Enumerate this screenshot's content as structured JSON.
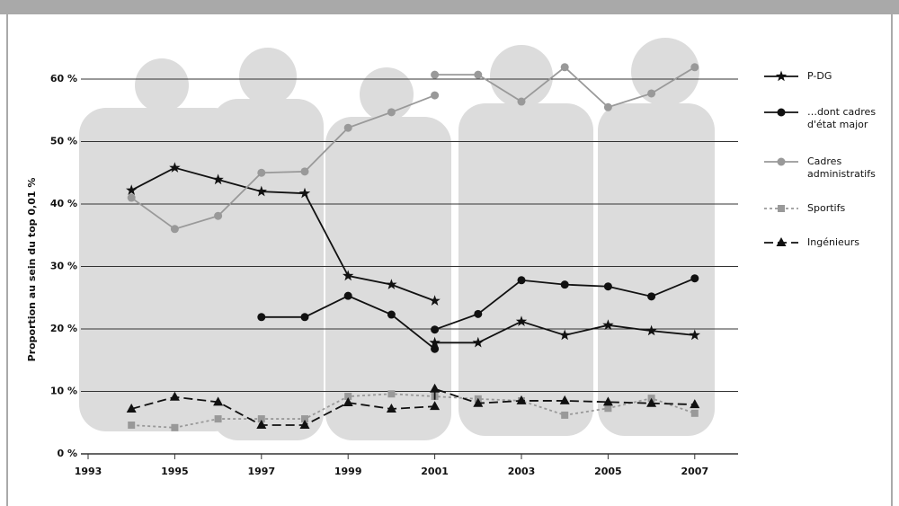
{
  "chart_data": {
    "type": "line",
    "y_label": "Proportion au sein du top 0,01 %",
    "xlim": [
      1993,
      2008
    ],
    "xticks": [
      1993,
      1995,
      1997,
      1999,
      2001,
      2003,
      2005,
      2007
    ],
    "ylim": [
      0,
      60
    ],
    "yticks": [
      {
        "value": 0,
        "label": "0 %"
      },
      {
        "value": 10,
        "label": "10 %"
      },
      {
        "value": 20,
        "label": "20 %"
      },
      {
        "value": 30,
        "label": "30 %"
      },
      {
        "value": 40,
        "label": "40 %"
      },
      {
        "value": 50,
        "label": "50 %"
      },
      {
        "value": 60,
        "label": "60 %"
      }
    ],
    "grid": true,
    "legend": "right",
    "series": [
      {
        "name": "P-DG",
        "color": "#111111",
        "marker": "star",
        "dash": "solid",
        "x": [
          1994,
          1995,
          1996,
          1997,
          1998,
          1999,
          2000,
          2001,
          2001,
          2001,
          2002,
          2003,
          2004,
          2005,
          2006,
          2007
        ],
        "values": [
          42.2,
          45.8,
          43.9,
          42.0,
          41.7,
          28.5,
          27.1,
          24.5,
          null,
          17.8,
          17.8,
          21.2,
          19.0,
          20.6,
          19.7,
          19.0
        ]
      },
      {
        "name": "…dont cadres d'état major",
        "color": "#111111",
        "marker": "circle",
        "dash": "solid",
        "x": [
          1997,
          1998,
          1999,
          2000,
          2001,
          2001,
          2001,
          2002,
          2003,
          2004,
          2005,
          2006,
          2007
        ],
        "values": [
          21.9,
          21.9,
          25.3,
          22.3,
          16.8,
          null,
          19.9,
          22.4,
          27.8,
          27.1,
          26.8,
          25.2,
          28.1
        ]
      },
      {
        "name": "Cadres administratifs",
        "color": "#999999",
        "marker": "circle",
        "dash": "solid",
        "x": [
          1994,
          1995,
          1996,
          1997,
          1998,
          1999,
          2000,
          2001,
          2001,
          2001,
          2002,
          2003,
          2004,
          2005,
          2006,
          2007
        ],
        "values": [
          41.0,
          36.0,
          38.1,
          45.0,
          45.2,
          52.2,
          54.7,
          57.4,
          null,
          60.7,
          60.7,
          56.4,
          61.9,
          55.5,
          57.7,
          61.9
        ]
      },
      {
        "name": "Sportifs",
        "color": "#999999",
        "marker": "square",
        "dash": "dotted",
        "x": [
          1994,
          1995,
          1996,
          1997,
          1998,
          1999,
          2000,
          2001,
          2002,
          2003,
          2004,
          2005,
          2006,
          2007
        ],
        "values": [
          4.6,
          4.2,
          5.6,
          5.6,
          5.6,
          9.2,
          9.6,
          9.2,
          8.8,
          8.5,
          6.2,
          7.3,
          8.9,
          6.5
        ]
      },
      {
        "name": "Ingénieurs",
        "color": "#111111",
        "marker": "triangle",
        "dash": "dashed",
        "x": [
          1994,
          1995,
          1996,
          1997,
          1998,
          1999,
          2000,
          2001,
          2001,
          2002,
          2003,
          2004,
          2005,
          2006,
          2007
        ],
        "values": [
          7.2,
          9.1,
          8.3,
          4.6,
          4.6,
          8.2,
          7.2,
          7.6,
          10.4,
          8.1,
          8.5,
          8.5,
          8.3,
          8.1,
          7.9
        ]
      }
    ]
  }
}
